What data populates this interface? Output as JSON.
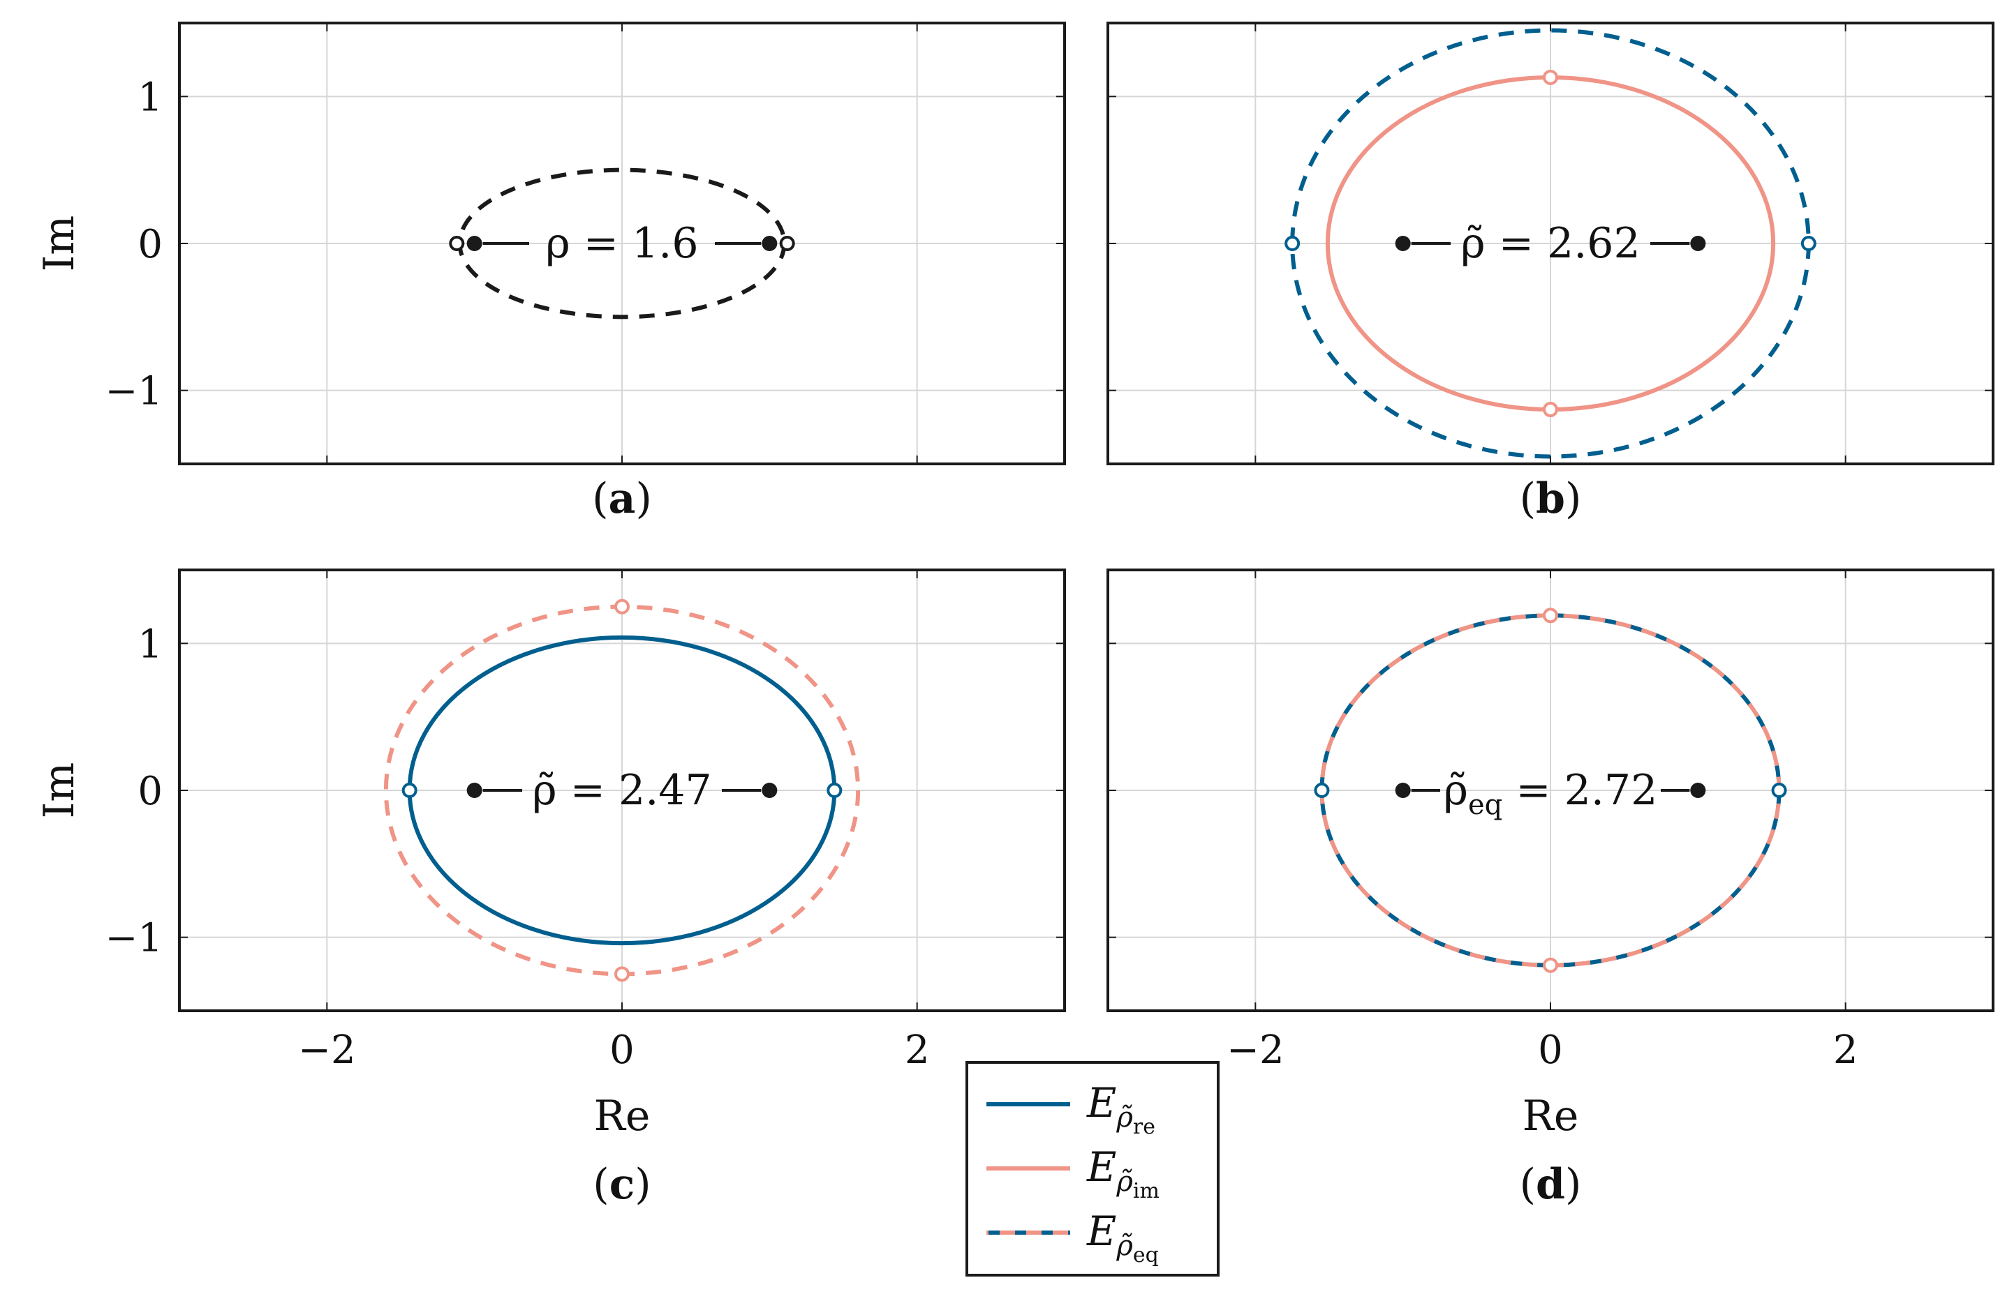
{
  "colors": {
    "re": "#005f8e",
    "im": "#ef9486",
    "axes": "#1a1a1a",
    "grid": "#d6d6d6",
    "focus": "#1a1a1a"
  },
  "chart_data": [
    {
      "type": "line",
      "panel": "a",
      "caption": {
        "open": "(",
        "letter": "a",
        "close": ")"
      },
      "xlabel": "",
      "ylabel": "Im",
      "xlim": [
        -3,
        3
      ],
      "ylim": [
        -1.5,
        1.5
      ],
      "xticks": [],
      "yticks": [
        "1",
        "0",
        "−1"
      ],
      "yticks_values": [
        1,
        0,
        -1
      ],
      "grid": true,
      "annotation": {
        "text": "ρ = 1.6"
      },
      "foci": [
        -1,
        1
      ],
      "series": [
        {
          "style": "dashed",
          "color_key": "focus",
          "semi_major": 1.1,
          "semi_minor": 0.5
        }
      ],
      "open_markers": [
        {
          "x": -1.12,
          "y": 0,
          "color_key": "focus"
        },
        {
          "x": 1.12,
          "y": 0,
          "color_key": "focus"
        }
      ]
    },
    {
      "type": "line",
      "panel": "b",
      "caption": {
        "open": "(",
        "letter": "b",
        "close": ")"
      },
      "xlabel": "",
      "ylabel": "",
      "xlim": [
        -3,
        3
      ],
      "ylim": [
        -1.5,
        1.5
      ],
      "xticks": [],
      "yticks": [],
      "grid": true,
      "annotation": {
        "text": "ρ̃ = 2.62"
      },
      "foci": [
        -1,
        1
      ],
      "series": [
        {
          "style": "solid",
          "color_key": "im",
          "semi_major": 1.51,
          "semi_minor": 1.13
        },
        {
          "style": "dashed",
          "color_key": "re",
          "semi_major": 1.75,
          "semi_minor": 1.45
        }
      ],
      "open_markers": [
        {
          "x": 0,
          "y": 1.13,
          "color_key": "im"
        },
        {
          "x": 0,
          "y": -1.13,
          "color_key": "im"
        },
        {
          "x": -1.75,
          "y": 0,
          "color_key": "re"
        },
        {
          "x": 1.75,
          "y": 0,
          "color_key": "re"
        }
      ]
    },
    {
      "type": "line",
      "panel": "c",
      "caption": {
        "open": "(",
        "letter": "c",
        "close": ")"
      },
      "xlabel": "Re",
      "ylabel": "Im",
      "xlim": [
        -3,
        3
      ],
      "ylim": [
        -1.5,
        1.5
      ],
      "xticks": [
        "−2",
        "0",
        "2"
      ],
      "xticks_values": [
        -2,
        0,
        2
      ],
      "yticks": [
        "1",
        "0",
        "−1"
      ],
      "yticks_values": [
        1,
        0,
        -1
      ],
      "grid": true,
      "annotation": {
        "text": "ρ̃ = 2.47"
      },
      "foci": [
        -1,
        1
      ],
      "series": [
        {
          "style": "solid",
          "color_key": "re",
          "semi_major": 1.44,
          "semi_minor": 1.04
        },
        {
          "style": "dashed",
          "color_key": "im",
          "semi_major": 1.6,
          "semi_minor": 1.25
        }
      ],
      "open_markers": [
        {
          "x": -1.44,
          "y": 0,
          "color_key": "re"
        },
        {
          "x": 1.44,
          "y": 0,
          "color_key": "re"
        },
        {
          "x": 0,
          "y": 1.25,
          "color_key": "im"
        },
        {
          "x": 0,
          "y": -1.25,
          "color_key": "im"
        }
      ]
    },
    {
      "type": "line",
      "panel": "d",
      "caption": {
        "open": "(",
        "letter": "d",
        "close": ")"
      },
      "xlabel": "Re",
      "ylabel": "",
      "xlim": [
        -3,
        3
      ],
      "ylim": [
        -1.5,
        1.5
      ],
      "xticks": [
        "−2",
        "0",
        "2"
      ],
      "xticks_values": [
        -2,
        0,
        2
      ],
      "yticks": [],
      "grid": true,
      "annotation": {
        "text": "ρ̃",
        "sub": "eq",
        "rest": " = 2.72"
      },
      "foci": [
        -1,
        1
      ],
      "series": [
        {
          "style": "bicolor-dashed",
          "color_key": "re",
          "color_key2": "im",
          "semi_major": 1.55,
          "semi_minor": 1.19
        }
      ],
      "open_markers": [
        {
          "x": -1.55,
          "y": 0,
          "color_key": "re"
        },
        {
          "x": 1.55,
          "y": 0,
          "color_key": "re"
        },
        {
          "x": 0,
          "y": 1.19,
          "color_key": "im"
        },
        {
          "x": 0,
          "y": -1.19,
          "color_key": "im"
        }
      ]
    }
  ],
  "legend": {
    "placement": "bottom-center",
    "entries": [
      {
        "base": "E",
        "sub": "ρ̃",
        "subsub": "re",
        "style": "solid",
        "color_key": "re"
      },
      {
        "base": "E",
        "sub": "ρ̃",
        "subsub": "im",
        "style": "solid",
        "color_key": "im"
      },
      {
        "base": "E",
        "sub": "ρ̃",
        "subsub": "eq",
        "style": "bicolor-dashed",
        "color_key": "re",
        "color_key2": "im"
      }
    ]
  }
}
